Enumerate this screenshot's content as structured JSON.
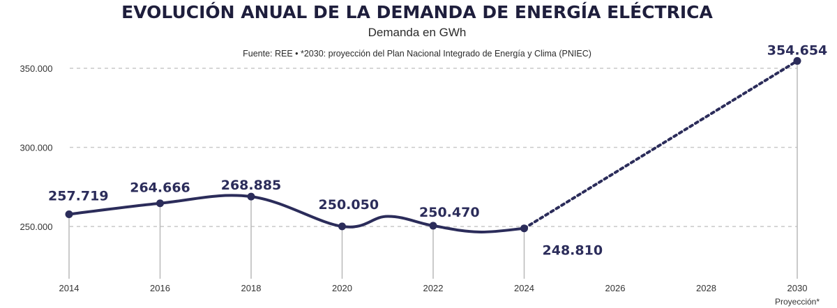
{
  "chart_data": {
    "type": "line",
    "title": "EVOLUCIÓN ANUAL DE LA DEMANDA DE ENERGÍA ELÉCTRICA",
    "subtitle": "Demanda en GWh",
    "source": "Fuente: REE • *2030: proyección del Plan Nacional Integrado de Energía y Clima (PNIEC)",
    "x_ticks": [
      "2014",
      "2016",
      "2018",
      "2020",
      "2022",
      "2024",
      "2026",
      "2028",
      "2030"
    ],
    "x_note": "Proyección*",
    "y_ticks": [
      {
        "value": 250000,
        "label": "250.000"
      },
      {
        "value": 300000,
        "label": "300.000"
      },
      {
        "value": 350000,
        "label": "350.000"
      }
    ],
    "ylim": [
      215000,
      365000
    ],
    "xlim": [
      2014,
      2030
    ],
    "series": [
      {
        "name": "Demanda",
        "color": "#2b2c5a",
        "style": "solid",
        "points": [
          {
            "x": 2014,
            "y": 257719,
            "label": "257.719"
          },
          {
            "x": 2016,
            "y": 264666,
            "label": "264.666"
          },
          {
            "x": 2018,
            "y": 268885,
            "label": "268.885"
          },
          {
            "x": 2020,
            "y": 250050,
            "label": "250.050"
          },
          {
            "x": 2021,
            "y": 256400
          },
          {
            "x": 2022,
            "y": 250470,
            "label": "250.470"
          },
          {
            "x": 2023,
            "y": 246500
          },
          {
            "x": 2024,
            "y": 248810,
            "label": "248.810"
          }
        ]
      },
      {
        "name": "Proyección",
        "color": "#2b2c5a",
        "style": "dotted",
        "points": [
          {
            "x": 2024,
            "y": 248810
          },
          {
            "x": 2030,
            "y": 354654,
            "label": "354.654"
          }
        ]
      }
    ],
    "grid": true
  }
}
